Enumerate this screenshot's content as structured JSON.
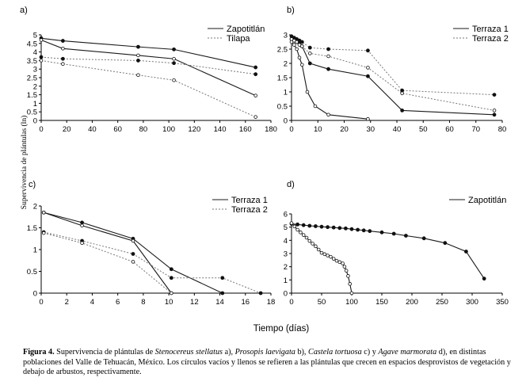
{
  "figure": {
    "ylabel": "Supervivencia de plántulas (ln)",
    "xlabel": "Tiempo (días)"
  },
  "caption": {
    "fig_label": "Figura 4.",
    "t1": " Supervivencia de plántulas de ",
    "sp1": "Stenocereus stellatus",
    "t2": " a), ",
    "sp2": "Prosopis laevigata",
    "t3": " b), ",
    "sp3": "Castela tortuosa",
    "t4": " c) y ",
    "sp4": "Agave marmorata",
    "t5": " d), en distintas poblaciones del Valle de Tehuacán, México. Los círculos vacíos y llenos se refieren a las plántulas que crecen en espacios desprovistos de vegetación y debajo de arbustos, respectivamente."
  },
  "colors": {
    "line": "#1a1a1a",
    "dashed": "#777777",
    "marker": "#111111"
  },
  "chart_data": [
    {
      "panel": "a)",
      "type": "line",
      "xlim": [
        0,
        180
      ],
      "ylim": [
        0,
        5
      ],
      "xticks": [
        "0",
        "20",
        "40",
        "60",
        "80",
        "100",
        "120",
        "140",
        "160",
        "180"
      ],
      "yticks": [
        "0",
        "0.5",
        "1",
        "1.5",
        "2",
        "2.5",
        "3",
        "3.5",
        "4",
        "4.5",
        "5"
      ],
      "legend": [
        {
          "name": "Zapotitlán",
          "style": "solid"
        },
        {
          "name": "Tilapa",
          "style": "dashed"
        }
      ],
      "series": [
        {
          "name": "Zapotitlán llenos",
          "style": "solid",
          "marker": "filled",
          "x": [
            0,
            17,
            76,
            104,
            168
          ],
          "y": [
            4.8,
            4.65,
            4.3,
            4.15,
            3.1
          ]
        },
        {
          "name": "Zapotitlán vacíos",
          "style": "solid",
          "marker": "open",
          "x": [
            0,
            17,
            76,
            104,
            168
          ],
          "y": [
            4.7,
            4.2,
            3.8,
            3.6,
            1.45
          ]
        },
        {
          "name": "Tilapa llenos",
          "style": "dashed",
          "marker": "filled",
          "x": [
            0,
            17,
            76,
            104,
            168
          ],
          "y": [
            3.7,
            3.6,
            3.5,
            3.35,
            2.7
          ]
        },
        {
          "name": "Tilapa vacíos",
          "style": "dashed",
          "marker": "open",
          "x": [
            0,
            17,
            76,
            104,
            168
          ],
          "y": [
            3.5,
            3.3,
            2.65,
            2.35,
            0.2
          ]
        }
      ]
    },
    {
      "panel": "b)",
      "type": "line",
      "xlim": [
        0,
        80
      ],
      "ylim": [
        0,
        3
      ],
      "xticks": [
        "0",
        "10",
        "20",
        "30",
        "40",
        "50",
        "60",
        "70",
        "80"
      ],
      "yticks": [
        "0",
        "0.5",
        "1",
        "1.5",
        "2",
        "2.5",
        "3"
      ],
      "legend": [
        {
          "name": "Terraza 1",
          "style": "solid"
        },
        {
          "name": "Terraza 2",
          "style": "dashed"
        }
      ],
      "series": [
        {
          "name": "Terraza 1 llenos",
          "style": "solid",
          "marker": "filled",
          "x": [
            0,
            1,
            2,
            3,
            4,
            7,
            14,
            29,
            42,
            77
          ],
          "y": [
            2.85,
            2.8,
            2.75,
            2.7,
            2.6,
            2.0,
            1.8,
            1.55,
            0.35,
            0.2
          ]
        },
        {
          "name": "Terraza 1 vacíos",
          "style": "solid",
          "marker": "open",
          "x": [
            0,
            1,
            2,
            3,
            4,
            6,
            9,
            14,
            29
          ],
          "y": [
            2.75,
            2.65,
            2.5,
            2.2,
            1.95,
            1.0,
            0.5,
            0.2,
            0.05
          ]
        },
        {
          "name": "Terraza 2 llenos",
          "style": "dashed",
          "marker": "filled",
          "x": [
            0,
            1,
            2,
            3,
            4,
            7,
            14,
            29,
            42,
            77
          ],
          "y": [
            2.95,
            2.9,
            2.85,
            2.8,
            2.75,
            2.55,
            2.5,
            2.45,
            1.05,
            0.9
          ]
        },
        {
          "name": "Terraza 2 vacíos",
          "style": "dashed",
          "marker": "open",
          "x": [
            0,
            1,
            2,
            3,
            4,
            7,
            14,
            29,
            42,
            77
          ],
          "y": [
            2.85,
            2.8,
            2.75,
            2.65,
            2.6,
            2.35,
            2.25,
            1.85,
            0.95,
            0.35
          ]
        }
      ]
    },
    {
      "panel": "c)",
      "type": "line",
      "xlim": [
        0,
        18
      ],
      "ylim": [
        0,
        2
      ],
      "xticks": [
        "0",
        "2",
        "4",
        "6",
        "8",
        "10",
        "12",
        "14",
        "16",
        "18"
      ],
      "yticks": [
        "0",
        "0.5",
        "1",
        "1.5",
        "2"
      ],
      "legend": [
        {
          "name": "Terraza 1",
          "style": "solid"
        },
        {
          "name": "Terraza 2",
          "style": "dashed"
        }
      ],
      "series": [
        {
          "name": "Terraza 1 llenos",
          "style": "solid",
          "marker": "filled",
          "x": [
            0.2,
            3.2,
            7.2,
            10.2,
            14.2
          ],
          "y": [
            1.85,
            1.62,
            1.25,
            0.55,
            0.0
          ]
        },
        {
          "name": "Terraza 1 vacíos",
          "style": "solid",
          "marker": "open",
          "x": [
            0.2,
            3.2,
            7.2,
            10.2
          ],
          "y": [
            1.85,
            1.55,
            1.2,
            0.0
          ]
        },
        {
          "name": "Terraza 2 llenos",
          "style": "dashed",
          "marker": "filled",
          "x": [
            0.2,
            3.2,
            7.2,
            10.2,
            14.2,
            17.2
          ],
          "y": [
            1.4,
            1.2,
            0.9,
            0.35,
            0.35,
            0.0
          ]
        },
        {
          "name": "Terraza 2 vacíos",
          "style": "dashed",
          "marker": "open",
          "x": [
            0.2,
            3.2,
            7.2,
            10.2
          ],
          "y": [
            1.38,
            1.15,
            0.72,
            0.0
          ]
        }
      ]
    },
    {
      "panel": "d)",
      "type": "line",
      "xlim": [
        0,
        350
      ],
      "ylim": [
        0,
        6
      ],
      "xticks": [
        "0",
        "50",
        "100",
        "150",
        "200",
        "250",
        "300",
        "350"
      ],
      "yticks": [
        "0",
        "1",
        "2",
        "3",
        "4",
        "5",
        "6"
      ],
      "legend": [
        {
          "name": "Zapotitlán",
          "style": "solid"
        }
      ],
      "series": [
        {
          "name": "Zapotitlán llenos",
          "style": "solid",
          "marker": "filled",
          "x": [
            0,
            10,
            20,
            30,
            40,
            50,
            60,
            70,
            80,
            90,
            100,
            110,
            120,
            130,
            150,
            170,
            190,
            220,
            255,
            290,
            320
          ],
          "y": [
            5.25,
            5.2,
            5.15,
            5.1,
            5.07,
            5.03,
            5.0,
            4.97,
            4.93,
            4.9,
            4.85,
            4.8,
            4.75,
            4.7,
            4.6,
            4.5,
            4.35,
            4.15,
            3.8,
            3.15,
            1.1
          ]
        },
        {
          "name": "Zapotitlán vacíos",
          "style": "solid",
          "marker": "open",
          "x": [
            0,
            5,
            10,
            15,
            20,
            25,
            30,
            35,
            40,
            45,
            50,
            55,
            60,
            65,
            70,
            75,
            80,
            85,
            88,
            91,
            94,
            97,
            100
          ],
          "y": [
            5.3,
            5.05,
            4.8,
            4.6,
            4.4,
            4.2,
            3.95,
            3.75,
            3.55,
            3.3,
            3.05,
            2.95,
            2.85,
            2.75,
            2.6,
            2.45,
            2.35,
            2.25,
            2.0,
            1.7,
            1.3,
            0.7,
            0.0
          ]
        }
      ]
    }
  ]
}
